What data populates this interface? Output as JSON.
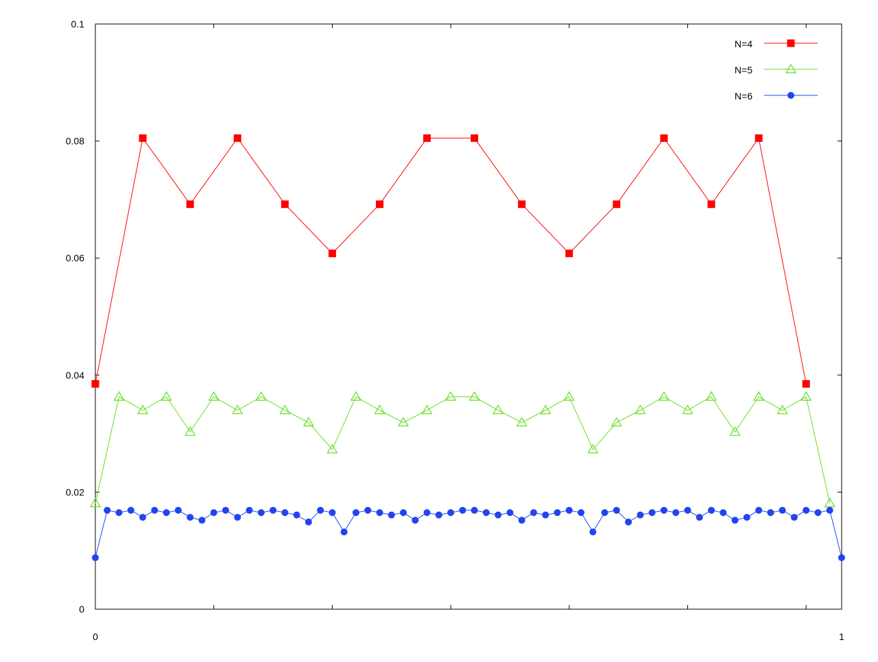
{
  "chart_data": {
    "type": "line",
    "xlim": [
      0,
      1
    ],
    "ylim": [
      0,
      0.1
    ],
    "x_ticks": [
      0,
      0.1587,
      0.3175,
      0.4762,
      0.6349,
      0.7937,
      0.9524
    ],
    "x_tick_labels": [
      {
        "value": 0,
        "label": "0"
      },
      {
        "value": 1,
        "label": "1"
      }
    ],
    "y_ticks": [
      {
        "value": 0,
        "label": "0"
      },
      {
        "value": 0.02,
        "label": "0.02"
      },
      {
        "value": 0.04,
        "label": "0.04"
      },
      {
        "value": 0.06,
        "label": "0.06"
      },
      {
        "value": 0.08,
        "label": "0.08"
      },
      {
        "value": 0.1,
        "label": "0.1"
      }
    ],
    "grid": false,
    "legend_position": "top-right",
    "series": [
      {
        "name": "N=4",
        "color": "#ff0000",
        "marker": "square",
        "x": [
          0,
          0.0635,
          0.127,
          0.1905,
          0.254,
          0.3175,
          0.381,
          0.4444,
          0.5079,
          0.5714,
          0.6349,
          0.6984,
          0.7619,
          0.8254,
          0.8889,
          0.9524
        ],
        "y": [
          0.0385,
          0.0805,
          0.0692,
          0.0805,
          0.0692,
          0.0608,
          0.0692,
          0.0805,
          0.0805,
          0.0692,
          0.0608,
          0.0692,
          0.0805,
          0.0692,
          0.0805,
          0.0385
        ]
      },
      {
        "name": "N=5",
        "color": "#66dd22",
        "marker": "triangle-open",
        "x": [
          0,
          0.0317,
          0.0635,
          0.0952,
          0.127,
          0.1587,
          0.1905,
          0.2222,
          0.254,
          0.2857,
          0.3175,
          0.3492,
          0.381,
          0.4127,
          0.4444,
          0.4762,
          0.5079,
          0.5397,
          0.5714,
          0.6032,
          0.6349,
          0.6667,
          0.6984,
          0.7302,
          0.7619,
          0.7937,
          0.8254,
          0.8571,
          0.8889,
          0.9206,
          0.9524,
          0.9841
        ],
        "y": [
          0.0181,
          0.0363,
          0.034,
          0.0363,
          0.0303,
          0.0363,
          0.034,
          0.0363,
          0.034,
          0.0319,
          0.0273,
          0.0363,
          0.034,
          0.0319,
          0.034,
          0.0363,
          0.0363,
          0.034,
          0.0319,
          0.034,
          0.0363,
          0.0273,
          0.0319,
          0.034,
          0.0363,
          0.034,
          0.0363,
          0.0303,
          0.0363,
          0.034,
          0.0363,
          0.0181
        ]
      },
      {
        "name": "N=6",
        "color": "#2244ee",
        "marker": "circle",
        "x": [
          0,
          0.0159,
          0.0317,
          0.0476,
          0.0635,
          0.0794,
          0.0952,
          0.1111,
          0.127,
          0.1429,
          0.1587,
          0.1746,
          0.1905,
          0.2063,
          0.2222,
          0.2381,
          0.254,
          0.2698,
          0.2857,
          0.3016,
          0.3175,
          0.3333,
          0.3492,
          0.3651,
          0.381,
          0.3968,
          0.4127,
          0.4286,
          0.4444,
          0.4603,
          0.4762,
          0.4921,
          0.5079,
          0.5238,
          0.5397,
          0.5556,
          0.5714,
          0.5873,
          0.6032,
          0.619,
          0.6349,
          0.6508,
          0.6667,
          0.6825,
          0.6984,
          0.7143,
          0.7302,
          0.746,
          0.7619,
          0.7778,
          0.7937,
          0.8095,
          0.8254,
          0.8413,
          0.8571,
          0.873,
          0.8889,
          0.9048,
          0.9206,
          0.9365,
          0.9524,
          0.9683,
          0.9841,
          1.0
        ],
        "y": [
          0.0088,
          0.0169,
          0.0165,
          0.0169,
          0.0157,
          0.0169,
          0.0165,
          0.0169,
          0.0157,
          0.0152,
          0.0165,
          0.0169,
          0.0157,
          0.0169,
          0.0165,
          0.0169,
          0.0165,
          0.0161,
          0.0149,
          0.0169,
          0.0165,
          0.0132,
          0.0165,
          0.0169,
          0.0165,
          0.0161,
          0.0165,
          0.0152,
          0.0165,
          0.0161,
          0.0165,
          0.0169,
          0.0169,
          0.0165,
          0.0161,
          0.0165,
          0.0152,
          0.0165,
          0.0161,
          0.0165,
          0.0169,
          0.0165,
          0.0132,
          0.0165,
          0.0169,
          0.0149,
          0.0161,
          0.0165,
          0.0169,
          0.0165,
          0.0169,
          0.0157,
          0.0169,
          0.0165,
          0.0152,
          0.0157,
          0.0169,
          0.0165,
          0.0169,
          0.0157,
          0.0169,
          0.0165,
          0.0169,
          0.0088
        ]
      }
    ]
  }
}
